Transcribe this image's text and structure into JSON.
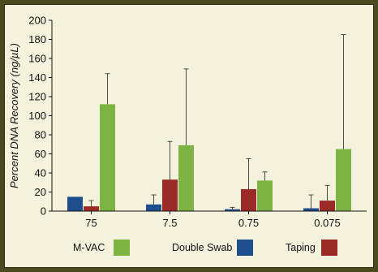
{
  "chart_data": {
    "type": "bar",
    "title": "",
    "xlabel": "",
    "ylabel": "Percent DNA Recovery (ng/µL)",
    "categories": [
      "75",
      "7.5",
      "0.75",
      "0.075"
    ],
    "ylim": [
      0,
      200
    ],
    "yticks": [
      0,
      20,
      40,
      60,
      80,
      100,
      120,
      140,
      160,
      180,
      200
    ],
    "grid": false,
    "legend_position": "bottom",
    "series": [
      {
        "name": "Double Swab",
        "color": "#1f4e8c",
        "values": [
          15,
          7,
          2,
          3
        ],
        "error": [
          0,
          10,
          2,
          14
        ]
      },
      {
        "name": "Taping",
        "color": "#9b2a26",
        "values": [
          5,
          33,
          23,
          11
        ],
        "error": [
          6,
          40,
          32,
          16
        ]
      },
      {
        "name": "M-VAC",
        "color": "#7cb342",
        "values": [
          112,
          69,
          32,
          65
        ],
        "error": [
          32,
          80,
          9,
          120
        ]
      }
    ],
    "legend": [
      {
        "label": "M-VAC",
        "series": 2
      },
      {
        "label": "Double Swab",
        "series": 0
      },
      {
        "label": "Taping",
        "series": 1
      }
    ]
  }
}
